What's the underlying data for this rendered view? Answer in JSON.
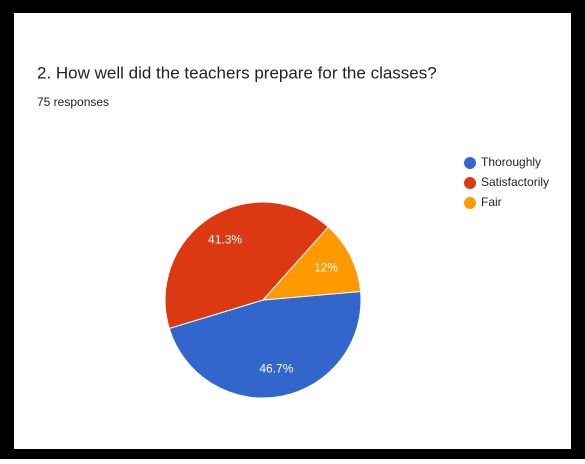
{
  "chart_data": {
    "type": "pie",
    "title": "2. How well did the teachers prepare for the classes?",
    "subtitle": "75 responses",
    "categories": [
      "Thoroughly",
      "Satisfactorily",
      "Fair"
    ],
    "values": [
      46.7,
      41.3,
      12
    ],
    "value_labels": [
      "46.7%",
      "41.3%",
      "12%"
    ],
    "colors": [
      "#3366cc",
      "#dc3912",
      "#ff9900"
    ],
    "legend": "right"
  }
}
